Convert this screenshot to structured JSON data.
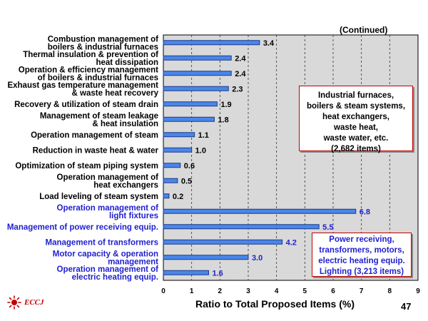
{
  "header": {
    "continued": "(Continued)"
  },
  "chart_data": {
    "type": "bar",
    "orientation": "horizontal",
    "categories": [
      [
        "Combustion management of",
        "boilers & industrial furnaces"
      ],
      [
        "Thermal insulation & prevention of",
        "heat dissipation"
      ],
      [
        "Operation & efficiency management",
        "of boilers & industrial furnaces"
      ],
      [
        "Exhaust gas temperature management",
        "& waste heat recovery"
      ],
      [
        "Recovery & utilization of steam drain"
      ],
      [
        "Management of steam leakage",
        "& heat insulation"
      ],
      [
        "Operation management of steam"
      ],
      [
        "Reduction in waste heat & water"
      ],
      [
        "Optimization of steam piping system"
      ],
      [
        "Operation management of",
        "heat exchangers"
      ],
      [
        "Load leveling of steam system"
      ],
      [
        "Operation management of",
        "light fixtures"
      ],
      [
        "Management of power receiving equip."
      ],
      [
        "Management of transformers"
      ],
      [
        "Motor capacity & operation",
        "management"
      ],
      [
        "Operation management of",
        "electric heating equip."
      ]
    ],
    "values": [
      3.4,
      2.4,
      2.4,
      2.3,
      1.9,
      1.8,
      1.1,
      1.0,
      0.6,
      0.5,
      0.2,
      6.8,
      5.5,
      4.2,
      3.0,
      1.6
    ],
    "value_labels": [
      "3.4",
      "2.4",
      "2.4",
      "2.3",
      "1.9",
      "1.8",
      "1.1",
      "1.0",
      "0.6",
      "0.5",
      "0.2",
      "6.8",
      "5.5",
      "4.2",
      "3.0",
      "1.6"
    ],
    "groups": [
      "black",
      "black",
      "black",
      "black",
      "black",
      "black",
      "black",
      "black",
      "black",
      "black",
      "black",
      "blue",
      "blue",
      "blue",
      "blue",
      "blue"
    ],
    "xlim": [
      0,
      9
    ],
    "xticks": [
      "0",
      "1",
      "2",
      "3",
      "4",
      "5",
      "6",
      "7",
      "8",
      "9"
    ],
    "xlabel": "Ratio to Total Proposed Items (%)",
    "grid": "vertical dashed",
    "colors": {
      "bar_fill": "#4a86e8",
      "bar_border": "#1a3a8a",
      "plot_bg": "#d9d9d9",
      "group_black_text": "#000000",
      "group_blue_text": "#1f1fd0",
      "box_border": "#c00000"
    }
  },
  "annotations": {
    "box1": [
      "Industrial furnaces,",
      "boilers & steam systems,",
      "heat exchangers,",
      "waste heat,",
      "waste water, etc.",
      "(2,682 items)"
    ],
    "box2": [
      "Power receiving,",
      "transformers, motors,",
      "electric heating equip.",
      "Lighting  (3,213 items)"
    ]
  },
  "footer": {
    "logo_text": "ECCJ",
    "page_number": "47"
  }
}
